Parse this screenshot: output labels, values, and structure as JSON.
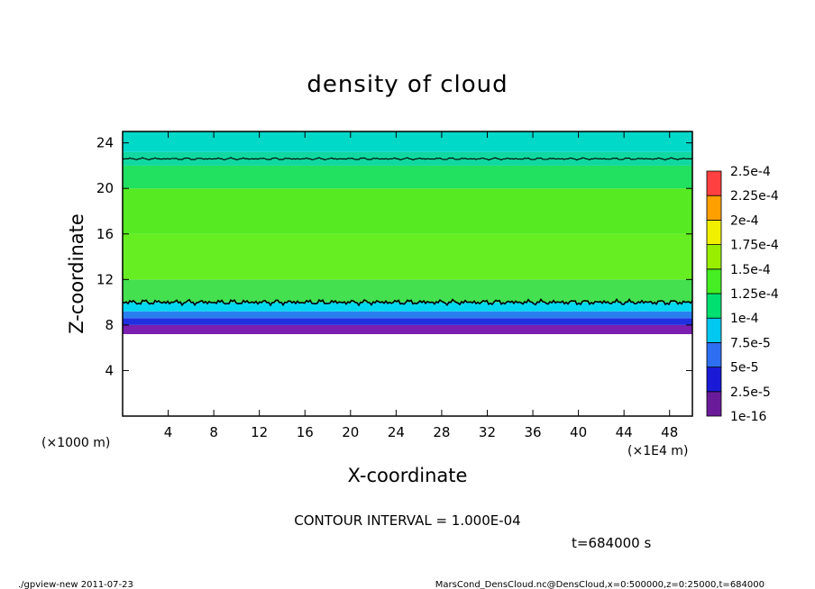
{
  "chart_data": {
    "type": "heatmap",
    "title": "density of cloud",
    "xlabel": "X-coordinate",
    "ylabel": "Z-coordinate",
    "x_unit": "(×1E4 m)",
    "y_unit": "(×1000 m)",
    "xlim": [
      0,
      50
    ],
    "ylim": [
      0,
      25
    ],
    "x_ticks": [
      "4",
      "8",
      "12",
      "16",
      "20",
      "24",
      "28",
      "32",
      "36",
      "40",
      "44",
      "48"
    ],
    "y_ticks": [
      "4",
      "8",
      "12",
      "16",
      "20",
      "24"
    ],
    "colorbar": {
      "labels": [
        "1e-16",
        "2.5e-5",
        "5e-5",
        "7.5e-5",
        "1e-4",
        "1.25e-4",
        "1.5e-4",
        "1.75e-4",
        "2e-4",
        "2.25e-4",
        "2.5e-4"
      ],
      "colors": [
        "#6a1b9a",
        "#1a1ad6",
        "#2d6ff0",
        "#00c8f0",
        "#00e070",
        "#44ee22",
        "#99ee00",
        "#f0f000",
        "#ffa000",
        "#ff4040",
        "#ff9090"
      ]
    },
    "bands": [
      {
        "z_from": 7.2,
        "z_to": 8.0,
        "color": "#7a1fb0"
      },
      {
        "z_from": 8.0,
        "z_to": 8.6,
        "color": "#2030e0"
      },
      {
        "z_from": 8.6,
        "z_to": 9.2,
        "color": "#2a7ff0"
      },
      {
        "z_from": 9.2,
        "z_to": 10.0,
        "color": "#00d8f0"
      },
      {
        "z_from": 10.0,
        "z_to": 12.0,
        "color": "#44e050"
      },
      {
        "z_from": 12.0,
        "z_to": 16.0,
        "color": "#66ee22"
      },
      {
        "z_from": 16.0,
        "z_to": 20.0,
        "color": "#55ea22"
      },
      {
        "z_from": 20.0,
        "z_to": 22.0,
        "color": "#22e060"
      },
      {
        "z_from": 22.0,
        "z_to": 23.2,
        "color": "#10d8a0"
      },
      {
        "z_from": 23.2,
        "z_to": 25.0,
        "color": "#00d8c8"
      }
    ],
    "contours": [
      {
        "level": "1.000E-04",
        "z": 10.0
      },
      {
        "level": "1.000E-04",
        "z": 22.6
      }
    ]
  },
  "contour_interval": "CONTOUR INTERVAL = 1.000E-04",
  "time_label": "t=684000 s",
  "footer_left": "./gpview-new   2011-07-23",
  "footer_right": "MarsCond_DensCloud.nc@DensCloud,x=0:500000,z=0:25000,t=684000"
}
